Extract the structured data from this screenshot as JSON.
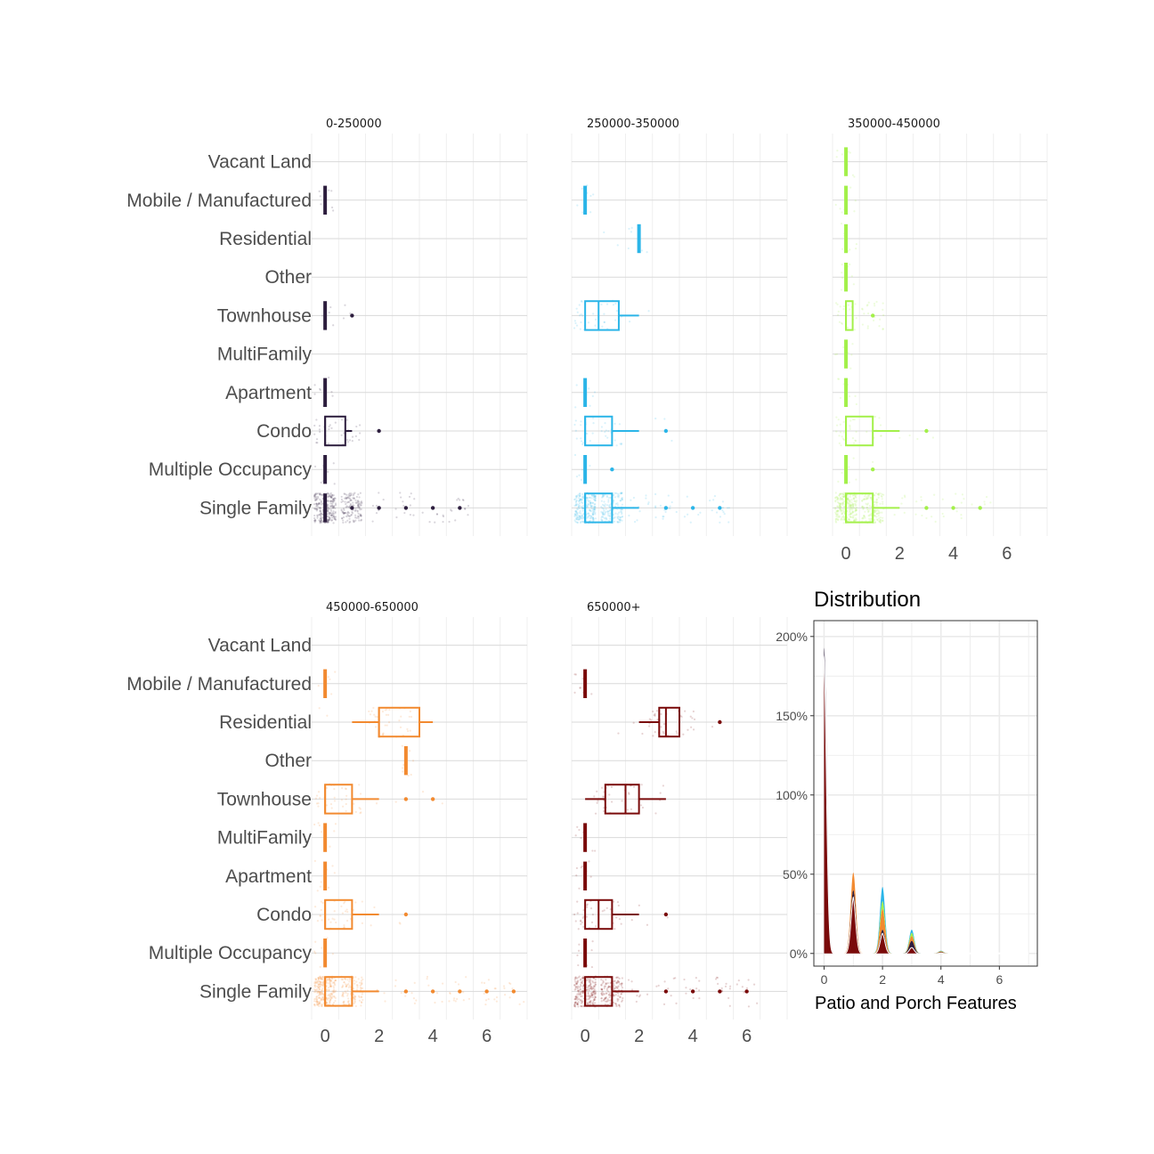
{
  "chart_data": [
    {
      "type": "boxplot",
      "panel": "0-250000",
      "color": "#2d1e3e",
      "categories": [
        "Vacant Land",
        "Mobile / Manufactured",
        "Residential",
        "Other",
        "Townhouse",
        "MultiFamily",
        "Apartment",
        "Condo",
        "Multiple Occupancy",
        "Single Family"
      ],
      "xlim": [
        -0.5,
        7.5
      ],
      "x_ticks": [
        0,
        2,
        4,
        6
      ],
      "show_x_ticks": false,
      "boxes": [
        {
          "category": "Mobile / Manufactured",
          "q1": 0,
          "median": 0,
          "q3": 0,
          "whisker_low": 0,
          "whisker_high": 0,
          "outliers": []
        },
        {
          "category": "Townhouse",
          "q1": 0,
          "median": 0,
          "q3": 0,
          "whisker_low": 0,
          "whisker_high": 0,
          "outliers": [
            1
          ]
        },
        {
          "category": "Apartment",
          "q1": 0,
          "median": 0,
          "q3": 0,
          "whisker_low": 0,
          "whisker_high": 0,
          "outliers": []
        },
        {
          "category": "Condo",
          "q1": 0,
          "median": 0,
          "q3": 0.75,
          "whisker_low": 0,
          "whisker_high": 1,
          "outliers": [
            2
          ]
        },
        {
          "category": "Multiple Occupancy",
          "q1": 0,
          "median": 0,
          "q3": 0,
          "whisker_low": 0,
          "whisker_high": 0,
          "outliers": []
        },
        {
          "category": "Single Family",
          "q1": 0,
          "median": 0,
          "q3": 0,
          "whisker_low": 0,
          "whisker_high": 0,
          "outliers": [
            1,
            2,
            3,
            4,
            5
          ]
        }
      ]
    },
    {
      "type": "boxplot",
      "panel": "250000-350000",
      "color": "#2bb5e8",
      "categories": [
        "Vacant Land",
        "Mobile / Manufactured",
        "Residential",
        "Other",
        "Townhouse",
        "MultiFamily",
        "Apartment",
        "Condo",
        "Multiple Occupancy",
        "Single Family"
      ],
      "xlim": [
        -0.5,
        7.5
      ],
      "x_ticks": [
        0,
        2,
        4,
        6
      ],
      "show_x_ticks": false,
      "boxes": [
        {
          "category": "Mobile / Manufactured",
          "q1": 0,
          "median": 0,
          "q3": 0,
          "whisker_low": 0,
          "whisker_high": 0,
          "outliers": []
        },
        {
          "category": "Residential",
          "q1": 2,
          "median": 2,
          "q3": 2,
          "whisker_low": 2,
          "whisker_high": 2,
          "outliers": []
        },
        {
          "category": "Townhouse",
          "q1": 0,
          "median": 0.5,
          "q3": 1.25,
          "whisker_low": 0,
          "whisker_high": 2,
          "outliers": []
        },
        {
          "category": "Apartment",
          "q1": 0,
          "median": 0,
          "q3": 0,
          "whisker_low": 0,
          "whisker_high": 0,
          "outliers": []
        },
        {
          "category": "Condo",
          "q1": 0,
          "median": 0,
          "q3": 1,
          "whisker_low": 0,
          "whisker_high": 2,
          "outliers": [
            3
          ]
        },
        {
          "category": "Multiple Occupancy",
          "q1": 0,
          "median": 0,
          "q3": 0,
          "whisker_low": 0,
          "whisker_high": 0,
          "outliers": [
            1
          ]
        },
        {
          "category": "Single Family",
          "q1": 0,
          "median": 0,
          "q3": 1,
          "whisker_low": 0,
          "whisker_high": 2,
          "outliers": [
            3,
            4,
            5
          ]
        }
      ]
    },
    {
      "type": "boxplot",
      "panel": "350000-450000",
      "color": "#a3f04a",
      "categories": [
        "Vacant Land",
        "Mobile / Manufactured",
        "Residential",
        "Other",
        "Townhouse",
        "MultiFamily",
        "Apartment",
        "Condo",
        "Multiple Occupancy",
        "Single Family"
      ],
      "xlim": [
        -0.5,
        7.5
      ],
      "x_ticks": [
        0,
        2,
        4,
        6
      ],
      "show_x_ticks": true,
      "boxes": [
        {
          "category": "Vacant Land",
          "q1": 0,
          "median": 0,
          "q3": 0,
          "whisker_low": 0,
          "whisker_high": 0,
          "outliers": []
        },
        {
          "category": "Mobile / Manufactured",
          "q1": 0,
          "median": 0,
          "q3": 0,
          "whisker_low": 0,
          "whisker_high": 0,
          "outliers": []
        },
        {
          "category": "Residential",
          "q1": 0,
          "median": 0,
          "q3": 0,
          "whisker_low": 0,
          "whisker_high": 0,
          "outliers": []
        },
        {
          "category": "Other",
          "q1": 0,
          "median": 0,
          "q3": 0,
          "whisker_low": 0,
          "whisker_high": 0,
          "outliers": []
        },
        {
          "category": "Townhouse",
          "q1": 0,
          "median": 0,
          "q3": 0.25,
          "whisker_low": 0,
          "whisker_high": 0.25,
          "outliers": [
            1
          ]
        },
        {
          "category": "MultiFamily",
          "q1": 0,
          "median": 0,
          "q3": 0,
          "whisker_low": 0,
          "whisker_high": 0,
          "outliers": []
        },
        {
          "category": "Apartment",
          "q1": 0,
          "median": 0,
          "q3": 0,
          "whisker_low": 0,
          "whisker_high": 0,
          "outliers": []
        },
        {
          "category": "Condo",
          "q1": 0,
          "median": 0,
          "q3": 1,
          "whisker_low": 0,
          "whisker_high": 2,
          "outliers": [
            3
          ]
        },
        {
          "category": "Multiple Occupancy",
          "q1": 0,
          "median": 0,
          "q3": 0,
          "whisker_low": 0,
          "whisker_high": 0,
          "outliers": [
            1
          ]
        },
        {
          "category": "Single Family",
          "q1": 0,
          "median": 0,
          "q3": 1,
          "whisker_low": 0,
          "whisker_high": 2,
          "outliers": [
            3,
            4,
            5
          ]
        }
      ]
    },
    {
      "type": "boxplot",
      "panel": "450000-650000",
      "color": "#f28a30",
      "categories": [
        "Vacant Land",
        "Mobile / Manufactured",
        "Residential",
        "Other",
        "Townhouse",
        "MultiFamily",
        "Apartment",
        "Condo",
        "Multiple Occupancy",
        "Single Family"
      ],
      "xlim": [
        -0.5,
        7.5
      ],
      "x_ticks": [
        0,
        2,
        4,
        6
      ],
      "show_x_ticks": true,
      "boxes": [
        {
          "category": "Mobile / Manufactured",
          "q1": 0,
          "median": 0,
          "q3": 0,
          "whisker_low": 0,
          "whisker_high": 0,
          "outliers": []
        },
        {
          "category": "Residential",
          "q1": 2,
          "median": 2,
          "q3": 3.5,
          "whisker_low": 1,
          "whisker_high": 4,
          "outliers": []
        },
        {
          "category": "Other",
          "q1": 3,
          "median": 3,
          "q3": 3,
          "whisker_low": 3,
          "whisker_high": 3,
          "outliers": []
        },
        {
          "category": "Townhouse",
          "q1": 0,
          "median": 0,
          "q3": 1,
          "whisker_low": 0,
          "whisker_high": 2,
          "outliers": [
            3,
            4
          ]
        },
        {
          "category": "MultiFamily",
          "q1": 0,
          "median": 0,
          "q3": 0,
          "whisker_low": 0,
          "whisker_high": 0,
          "outliers": []
        },
        {
          "category": "Apartment",
          "q1": 0,
          "median": 0,
          "q3": 0,
          "whisker_low": 0,
          "whisker_high": 0,
          "outliers": []
        },
        {
          "category": "Condo",
          "q1": 0,
          "median": 0,
          "q3": 1,
          "whisker_low": 0,
          "whisker_high": 2,
          "outliers": [
            3
          ]
        },
        {
          "category": "Multiple Occupancy",
          "q1": 0,
          "median": 0,
          "q3": 0,
          "whisker_low": 0,
          "whisker_high": 0,
          "outliers": []
        },
        {
          "category": "Single Family",
          "q1": 0,
          "median": 0,
          "q3": 1,
          "whisker_low": 0,
          "whisker_high": 2,
          "outliers": [
            3,
            4,
            5,
            6,
            7
          ]
        }
      ]
    },
    {
      "type": "boxplot",
      "panel": "650000+",
      "color": "#7a0a0a",
      "categories": [
        "Vacant Land",
        "Mobile / Manufactured",
        "Residential",
        "Other",
        "Townhouse",
        "MultiFamily",
        "Apartment",
        "Condo",
        "Multiple Occupancy",
        "Single Family"
      ],
      "xlim": [
        -0.5,
        7.5
      ],
      "x_ticks": [
        0,
        2,
        4,
        6
      ],
      "show_x_ticks": true,
      "boxes": [
        {
          "category": "Mobile / Manufactured",
          "q1": 0,
          "median": 0,
          "q3": 0,
          "whisker_low": 0,
          "whisker_high": 0,
          "outliers": []
        },
        {
          "category": "Residential",
          "q1": 2.75,
          "median": 3,
          "q3": 3.5,
          "whisker_low": 2,
          "whisker_high": 3.5,
          "outliers": [
            5
          ]
        },
        {
          "category": "Townhouse",
          "q1": 0.75,
          "median": 1.5,
          "q3": 2,
          "whisker_low": 0,
          "whisker_high": 3,
          "outliers": []
        },
        {
          "category": "MultiFamily",
          "q1": 0,
          "median": 0,
          "q3": 0,
          "whisker_low": 0,
          "whisker_high": 0,
          "outliers": []
        },
        {
          "category": "Apartment",
          "q1": 0,
          "median": 0,
          "q3": 0,
          "whisker_low": 0,
          "whisker_high": 0,
          "outliers": []
        },
        {
          "category": "Condo",
          "q1": 0,
          "median": 0.5,
          "q3": 1,
          "whisker_low": 0,
          "whisker_high": 2,
          "outliers": [
            3
          ]
        },
        {
          "category": "Multiple Occupancy",
          "q1": 0,
          "median": 0,
          "q3": 0,
          "whisker_low": 0,
          "whisker_high": 0,
          "outliers": []
        },
        {
          "category": "Single Family",
          "q1": 0,
          "median": 0,
          "q3": 1,
          "whisker_low": 0,
          "whisker_high": 2,
          "outliers": [
            3,
            4,
            5,
            6
          ]
        }
      ]
    },
    {
      "type": "area",
      "panel": "Distribution",
      "title": "Distribution",
      "xlabel": "Patio and Porch Features",
      "ylabel": "",
      "xlim": [
        -0.35,
        7.3
      ],
      "ylim": [
        -0.08,
        2.1
      ],
      "x_ticks": [
        0,
        2,
        4,
        6
      ],
      "y_ticks": [
        0,
        0.5,
        1,
        1.5,
        2
      ],
      "y_tick_labels": [
        "0%",
        "50%",
        "100%",
        "150%",
        "200%"
      ],
      "stacked": true,
      "series": [
        {
          "color": "#7a0a0a",
          "peaks": [
            [
              0,
              1.88
            ],
            [
              1,
              0.36
            ],
            [
              2,
              0.13
            ],
            [
              3,
              0.04
            ],
            [
              4,
              0.005
            ]
          ]
        },
        {
          "color": "#2d1e3e",
          "peaks": [
            [
              0,
              0.05
            ],
            [
              1,
              0.04
            ],
            [
              2,
              0.02
            ],
            [
              3,
              0.04
            ],
            [
              4,
              0.003
            ]
          ]
        },
        {
          "color": "#f28a30",
          "peaks": [
            [
              0,
              0.0
            ],
            [
              1,
              0.11
            ],
            [
              2,
              0.13
            ],
            [
              3,
              0.03
            ],
            [
              4,
              0.005
            ]
          ]
        },
        {
          "color": "#a3f04a",
          "peaks": [
            [
              0,
              0.0
            ],
            [
              1,
              0.0
            ],
            [
              2,
              0.05
            ],
            [
              3,
              0.02
            ],
            [
              4,
              0.002
            ]
          ]
        },
        {
          "color": "#2bb5e8",
          "peaks": [
            [
              0,
              0.0
            ],
            [
              1,
              0.0
            ],
            [
              2,
              0.09
            ],
            [
              3,
              0.02
            ],
            [
              4,
              0.002
            ]
          ]
        }
      ]
    }
  ]
}
